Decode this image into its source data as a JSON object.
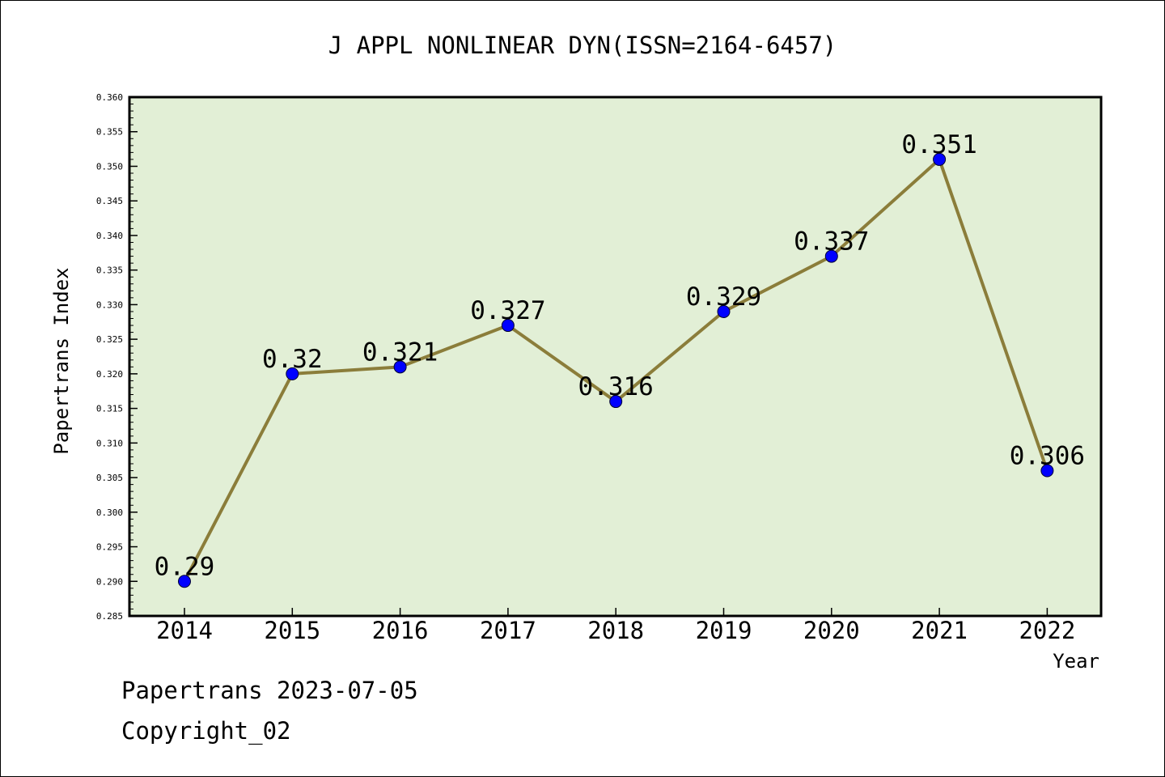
{
  "chart_data": {
    "type": "line",
    "title": "J APPL NONLINEAR DYN(ISSN=2164-6457)",
    "xlabel": "Year",
    "ylabel": "Papertrans Index",
    "categories": [
      "2014",
      "2015",
      "2016",
      "2017",
      "2018",
      "2019",
      "2020",
      "2021",
      "2022"
    ],
    "values": [
      0.29,
      0.32,
      0.321,
      0.327,
      0.316,
      0.329,
      0.337,
      0.351,
      0.306
    ],
    "data_labels": [
      "0.29",
      "0.32",
      "0.321",
      "0.327",
      "0.316",
      "0.329",
      "0.337",
      "0.351",
      "0.306"
    ],
    "ylim": [
      0.285,
      0.36
    ],
    "y_ticks": [
      "0.285",
      "0.290",
      "0.295",
      "0.300",
      "0.305",
      "0.310",
      "0.315",
      "0.320",
      "0.325",
      "0.330",
      "0.335",
      "0.340",
      "0.345",
      "0.350",
      "0.355",
      "0.360"
    ],
    "grid": false,
    "legend": "none",
    "colors": {
      "plot_background": "#e2efd6",
      "line": "#8b7d3a",
      "marker": "#0000ff"
    }
  },
  "footer": {
    "line1": "Papertrans 2023-07-05",
    "line2": "Copyright_02"
  }
}
